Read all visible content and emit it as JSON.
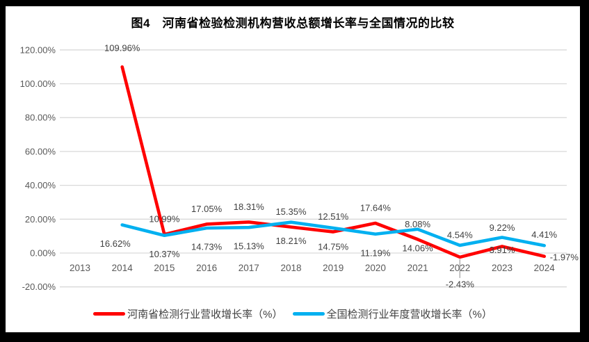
{
  "frame": {
    "outer_bg": "#000000",
    "card_bg": "#ffffff",
    "gridline_color": "#d9d9d9",
    "tick_label_color": "#595959",
    "data_label_color": "#404040",
    "leader_line_color": "#a6a6a6"
  },
  "chart_data": {
    "type": "line",
    "title": "图4　河南省检验检测机构营收总额增长率与全国情况的比较",
    "categories": [
      "2013",
      "2014",
      "2015",
      "2016",
      "2017",
      "2018",
      "2019",
      "2020",
      "2021",
      "2022",
      "2023",
      "2024"
    ],
    "series": [
      {
        "name": "河南省检测行业营收增长率（%）",
        "color": "#ff0000",
        "values": [
          null,
          109.96,
          10.99,
          17.05,
          18.31,
          15.35,
          12.51,
          17.64,
          8.08,
          -2.43,
          3.91,
          -1.97
        ]
      },
      {
        "name": "全国检测行业年度营收增长率（%）",
        "color": "#00b0f0",
        "values": [
          null,
          16.62,
          10.37,
          14.73,
          15.13,
          18.21,
          14.75,
          11.19,
          14.06,
          4.54,
          9.22,
          4.41
        ]
      }
    ],
    "y_axis": {
      "min": -20,
      "max": 120,
      "step": 20,
      "tick_labels": [
        "120.00%",
        "100.00%",
        "80.00%",
        "60.00%",
        "40.00%",
        "20.00%",
        "0.00%",
        "-20.00%"
      ]
    },
    "grid": true,
    "legend_position": "bottom",
    "data_labels": [
      {
        "ci": 1,
        "si": 0,
        "text": "109.96%",
        "side": "above",
        "dy": -5
      },
      {
        "ci": 1,
        "si": 1,
        "text": "16.62%",
        "side": "below",
        "dx": -10
      },
      {
        "ci": 2,
        "si": 0,
        "text": "10.99%",
        "side": "above"
      },
      {
        "ci": 2,
        "si": 1,
        "text": "10.37%",
        "side": "below"
      },
      {
        "ci": 3,
        "si": 0,
        "text": "17.05%",
        "side": "above"
      },
      {
        "ci": 3,
        "si": 1,
        "text": "14.73%",
        "side": "below"
      },
      {
        "ci": 4,
        "si": 0,
        "text": "18.31%",
        "side": "above"
      },
      {
        "ci": 4,
        "si": 1,
        "text": "15.13%",
        "side": "below"
      },
      {
        "ci": 5,
        "si": 0,
        "text": "15.35%",
        "side": "above"
      },
      {
        "ci": 5,
        "si": 1,
        "text": "18.21%",
        "side": "below"
      },
      {
        "ci": 6,
        "si": 0,
        "text": "12.51%",
        "side": "above"
      },
      {
        "ci": 6,
        "si": 1,
        "text": "14.75%",
        "side": "below"
      },
      {
        "ci": 7,
        "si": 0,
        "text": "17.64%",
        "side": "above"
      },
      {
        "ci": 7,
        "si": 1,
        "text": "11.19%",
        "side": "below"
      },
      {
        "ci": 8,
        "si": 0,
        "text": "8.08%",
        "side": "above"
      },
      {
        "ci": 8,
        "si": 1,
        "text": "14.06%",
        "side": "below"
      },
      {
        "ci": 9,
        "si": 1,
        "text": "4.54%",
        "side": "above",
        "dy": 7
      },
      {
        "ci": 9,
        "si": 0,
        "text": "-2.43%",
        "side": "below",
        "dy": 12,
        "leader": true
      },
      {
        "ci": 10,
        "si": 1,
        "text": "9.22%",
        "side": "above",
        "dy": 8
      },
      {
        "ci": 10,
        "si": 0,
        "text": "3.91%",
        "side": "below",
        "dy": -22
      },
      {
        "ci": 11,
        "si": 1,
        "text": "4.41%",
        "side": "above",
        "dy": 6
      },
      {
        "ci": 11,
        "si": 0,
        "text": "-1.97%",
        "side": "right"
      }
    ]
  }
}
